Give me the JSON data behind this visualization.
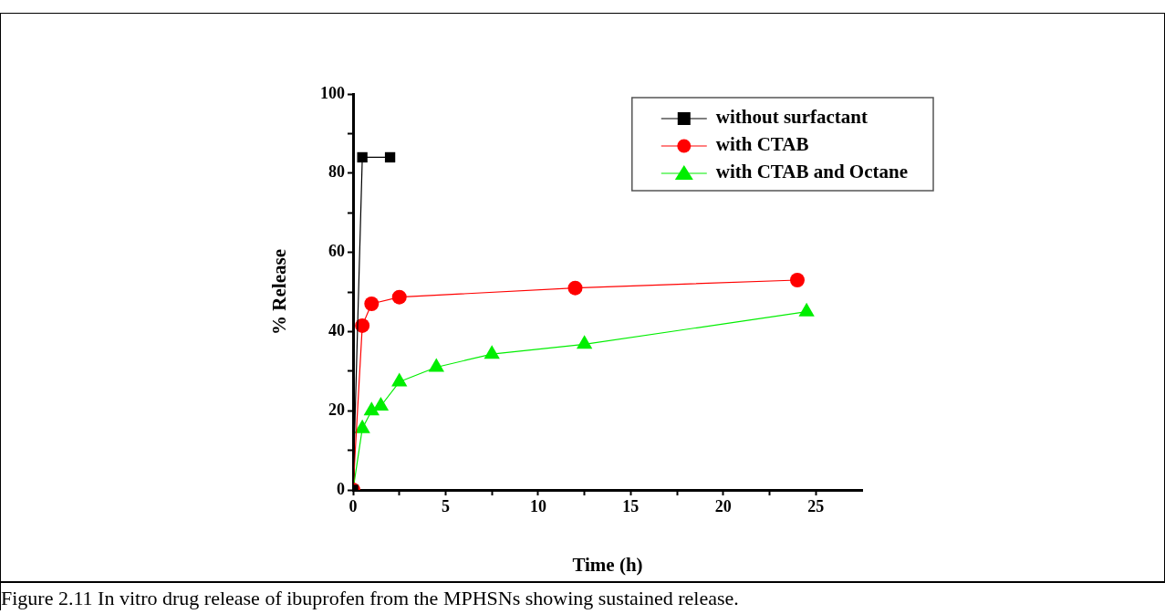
{
  "chart_data": {
    "type": "line",
    "xlabel": "Time (h)",
    "ylabel": "% Release",
    "xlim": [
      0,
      27.5
    ],
    "ylim": [
      0,
      100
    ],
    "xticks": [
      0,
      {
        "value": 2.5,
        "label": null
      },
      5,
      {
        "value": 7.5,
        "label": null
      },
      10,
      {
        "value": 12.5,
        "label": null
      },
      15,
      {
        "value": 17.5,
        "label": null
      },
      20,
      {
        "value": 22.5,
        "label": null
      },
      25
    ],
    "yticks": [
      0,
      {
        "value": 10,
        "label": null
      },
      20,
      {
        "value": 30,
        "label": null
      },
      40,
      {
        "value": 50,
        "label": null
      },
      60,
      {
        "value": 70,
        "label": null
      },
      80,
      {
        "value": 90,
        "label": null
      },
      100
    ],
    "grid": false,
    "legend": "top right",
    "line_style": "solid",
    "series": [
      {
        "name": "without surfactant",
        "color": "#000000",
        "marker": "square",
        "x": [
          0,
          0.5,
          2
        ],
        "values": [
          0,
          84,
          84
        ]
      },
      {
        "name": "with CTAB",
        "color": "#ff0000",
        "marker": "circle",
        "x": [
          0,
          0.5,
          1,
          2.5,
          12,
          24
        ],
        "values": [
          0,
          41.5,
          47,
          48.7,
          51,
          53
        ]
      },
      {
        "name": "with CTAB and Octane",
        "color": "#00ee00",
        "marker": "triangle",
        "x": [
          0,
          0.5,
          1,
          1.5,
          2.5,
          4.5,
          7.5,
          12.5,
          24.5
        ],
        "values": [
          0,
          15.5,
          20,
          21.2,
          27.3,
          31,
          34.3,
          36.8,
          45
        ]
      }
    ],
    "annotations": [
      "Figure 2.11 In vitro drug release of ibuprofen from the MPHSNs showing sustained release."
    ]
  }
}
